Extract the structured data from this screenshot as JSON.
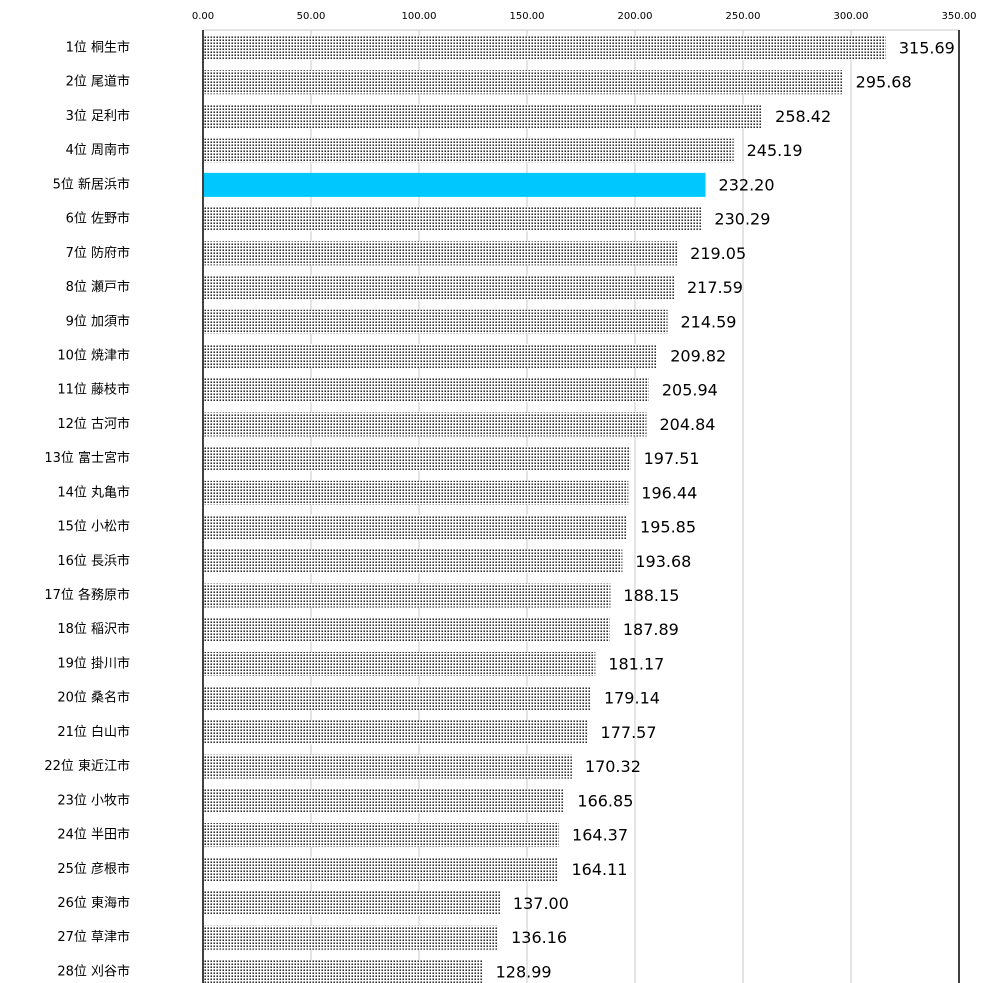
{
  "chart_data": {
    "type": "hbar",
    "categories": [
      "1位 桐生市",
      "2位 尾道市",
      "3位 足利市",
      "4位 周南市",
      "5位 新居浜市",
      "6位 佐野市",
      "7位 防府市",
      "8位 瀬戸市",
      "9位 加須市",
      "10位 焼津市",
      "11位 藤枝市",
      "12位 古河市",
      "13位 富士宮市",
      "14位 丸亀市",
      "15位 小松市",
      "16位 長浜市",
      "17位 各務原市",
      "18位 稲沢市",
      "19位 掛川市",
      "20位 桑名市",
      "21位 白山市",
      "22位 東近江市",
      "23位 小牧市",
      "24位 半田市",
      "25位 彦根市",
      "26位 東海市",
      "27位 草津市",
      "28位 刈谷市"
    ],
    "values": [
      315.69,
      295.68,
      258.42,
      245.19,
      232.2,
      230.29,
      219.05,
      217.59,
      214.59,
      209.82,
      205.94,
      204.84,
      197.51,
      196.44,
      195.85,
      193.68,
      188.15,
      187.89,
      181.17,
      179.14,
      177.57,
      170.32,
      166.85,
      164.37,
      164.11,
      137,
      136.16,
      128.99
    ],
    "value_labels": [
      "315.69",
      "295.68",
      "258.42",
      "245.19",
      "232.20",
      "230.29",
      "219.05",
      "217.59",
      "214.59",
      "209.82",
      "205.94",
      "204.84",
      "197.51",
      "196.44",
      "195.85",
      "193.68",
      "188.15",
      "187.89",
      "181.17",
      "179.14",
      "177.57",
      "170.32",
      "166.85",
      "164.37",
      "164.11",
      "137.00",
      "136.16",
      "128.99"
    ],
    "color": "#000000",
    "highlight_index": 4,
    "highlight_color": "#00c8ff",
    "xlim": [
      0,
      350
    ],
    "xticks": [
      {
        "value": 0,
        "label": "0.00"
      },
      {
        "value": 50,
        "label": "50.00"
      },
      {
        "value": 100,
        "label": "100.00"
      },
      {
        "value": 150,
        "label": "150.00"
      },
      {
        "value": 200,
        "label": "200.00"
      },
      {
        "value": 250,
        "label": "250.00"
      },
      {
        "value": 300,
        "label": "300.00"
      },
      {
        "value": 350,
        "label": "350.00"
      }
    ],
    "grid": true
  }
}
